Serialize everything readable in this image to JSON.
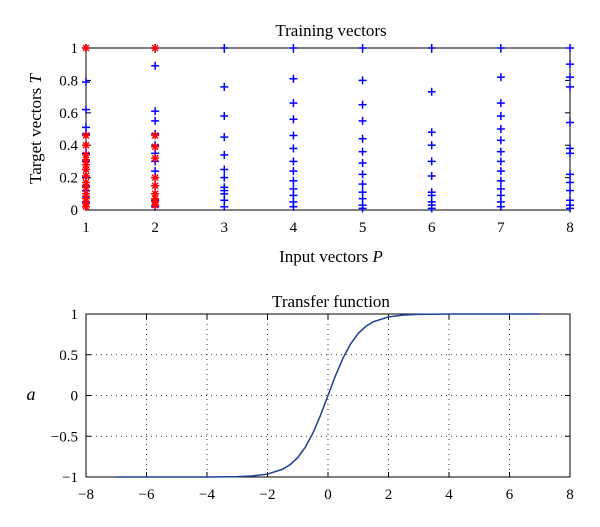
{
  "chart_data": [
    {
      "type": "scatter",
      "title": "Training vectors",
      "xlabel_main": "Input vectors ",
      "xlabel_var": "P",
      "ylabel_main": "Target vectors ",
      "ylabel_var": "T",
      "xlim": [
        1,
        8
      ],
      "ylim": [
        0,
        1
      ],
      "xticks": [
        1,
        2,
        3,
        4,
        5,
        6,
        7,
        8
      ],
      "yticks": [
        0,
        0.2,
        0.4,
        0.6,
        0.8,
        1
      ],
      "grid": false,
      "series": [
        {
          "marker": "+",
          "color": "#0000ff",
          "points": [
            [
              1,
              1
            ],
            [
              1,
              0.79
            ],
            [
              1,
              0.62
            ],
            [
              1,
              0.51
            ],
            [
              1,
              0.47
            ],
            [
              1,
              0.4
            ],
            [
              1,
              0.35
            ],
            [
              1,
              0.3
            ],
            [
              1,
              0.25
            ],
            [
              1,
              0.2
            ],
            [
              1,
              0.15
            ],
            [
              1,
              0.12
            ],
            [
              1,
              0.08
            ],
            [
              1,
              0.05
            ],
            [
              1,
              0.02
            ],
            [
              2,
              1
            ],
            [
              2,
              0.89
            ],
            [
              2,
              0.61
            ],
            [
              2,
              0.55
            ],
            [
              2,
              0.47
            ],
            [
              2,
              0.4
            ],
            [
              2,
              0.35
            ],
            [
              2,
              0.3
            ],
            [
              2,
              0.24
            ],
            [
              2,
              0.2
            ],
            [
              2,
              0.15
            ],
            [
              2,
              0.1
            ],
            [
              2,
              0.06
            ],
            [
              2,
              0.02
            ],
            [
              3,
              1
            ],
            [
              3,
              0.76
            ],
            [
              3,
              0.58
            ],
            [
              3,
              0.45
            ],
            [
              3,
              0.34
            ],
            [
              3,
              0.25
            ],
            [
              3,
              0.2
            ],
            [
              3,
              0.14
            ],
            [
              3,
              0.12
            ],
            [
              3,
              0.1
            ],
            [
              3,
              0.06
            ],
            [
              3,
              0.02
            ],
            [
              4,
              1
            ],
            [
              4,
              0.81
            ],
            [
              4,
              0.66
            ],
            [
              4,
              0.56
            ],
            [
              4,
              0.46
            ],
            [
              4,
              0.38
            ],
            [
              4,
              0.3
            ],
            [
              4,
              0.24
            ],
            [
              4,
              0.18
            ],
            [
              4,
              0.13
            ],
            [
              4,
              0.09
            ],
            [
              4,
              0.05
            ],
            [
              4,
              0.02
            ],
            [
              5,
              1
            ],
            [
              5,
              0.8
            ],
            [
              5,
              0.65
            ],
            [
              5,
              0.55
            ],
            [
              5,
              0.44
            ],
            [
              5,
              0.36
            ],
            [
              5,
              0.29
            ],
            [
              5,
              0.22
            ],
            [
              5,
              0.16
            ],
            [
              5,
              0.11
            ],
            [
              5,
              0.07
            ],
            [
              5,
              0.03
            ],
            [
              5,
              0.01
            ],
            [
              6,
              1
            ],
            [
              6,
              0.73
            ],
            [
              6,
              0.48
            ],
            [
              6,
              0.4
            ],
            [
              6,
              0.3
            ],
            [
              6,
              0.21
            ],
            [
              6,
              0.11
            ],
            [
              6,
              0.09
            ],
            [
              6,
              0.05
            ],
            [
              6,
              0.03
            ],
            [
              6,
              0.01
            ],
            [
              7,
              1
            ],
            [
              7,
              0.82
            ],
            [
              7,
              0.66
            ],
            [
              7,
              0.58
            ],
            [
              7,
              0.5
            ],
            [
              7,
              0.43
            ],
            [
              7,
              0.36
            ],
            [
              7,
              0.3
            ],
            [
              7,
              0.24
            ],
            [
              7,
              0.18
            ],
            [
              7,
              0.13
            ],
            [
              7,
              0.09
            ],
            [
              7,
              0.05
            ],
            [
              7,
              0.02
            ],
            [
              8,
              1
            ],
            [
              8,
              0.9
            ],
            [
              8,
              0.82
            ],
            [
              8,
              0.76
            ],
            [
              8,
              0.54
            ],
            [
              8,
              0.38
            ],
            [
              8,
              0.35
            ],
            [
              8,
              0.22
            ],
            [
              8,
              0.17
            ],
            [
              8,
              0.12
            ],
            [
              8,
              0.06
            ],
            [
              8,
              0.03
            ],
            [
              8,
              0.01
            ]
          ]
        },
        {
          "marker": "*",
          "color": "#ff0000",
          "points": [
            [
              1,
              1
            ],
            [
              1,
              0.46
            ],
            [
              1,
              0.4
            ],
            [
              1,
              0.34
            ],
            [
              1,
              0.31
            ],
            [
              1,
              0.28
            ],
            [
              1,
              0.25
            ],
            [
              1,
              0.21
            ],
            [
              1,
              0.17
            ],
            [
              1,
              0.14
            ],
            [
              1,
              0.1
            ],
            [
              1,
              0.07
            ],
            [
              1,
              0.04
            ],
            [
              1,
              0.02
            ],
            [
              2,
              1
            ],
            [
              2,
              0.46
            ],
            [
              2,
              0.39
            ],
            [
              2,
              0.32
            ],
            [
              2,
              0.2
            ],
            [
              2,
              0.15
            ],
            [
              2,
              0.1
            ],
            [
              2,
              0.07
            ],
            [
              2,
              0.05
            ],
            [
              2,
              0.03
            ]
          ]
        }
      ]
    },
    {
      "type": "line",
      "title": "Transfer function",
      "ylabel": "a",
      "xlim": [
        -8,
        8
      ],
      "ylim": [
        -1,
        1
      ],
      "xticks": [
        -8,
        -6,
        -4,
        -2,
        0,
        2,
        4,
        6,
        8
      ],
      "yticks": [
        -1,
        -0.5,
        0,
        0.5,
        1
      ],
      "grid": true,
      "series": [
        {
          "color": "#1f3f8f",
          "x": [
            -7,
            -6,
            -5,
            -4,
            -3,
            -2.5,
            -2,
            -1.5,
            -1.25,
            -1,
            -0.75,
            -0.5,
            -0.25,
            0,
            0.25,
            0.5,
            0.75,
            1,
            1.25,
            1.5,
            2,
            2.5,
            3,
            4,
            5,
            6,
            7
          ],
          "y": [
            -1,
            -1,
            -1,
            -1,
            -0.995,
            -0.987,
            -0.964,
            -0.905,
            -0.848,
            -0.762,
            -0.635,
            -0.462,
            -0.245,
            0,
            0.245,
            0.462,
            0.635,
            0.762,
            0.848,
            0.905,
            0.964,
            0.987,
            0.995,
            1,
            1,
            1,
            1
          ]
        }
      ]
    }
  ]
}
